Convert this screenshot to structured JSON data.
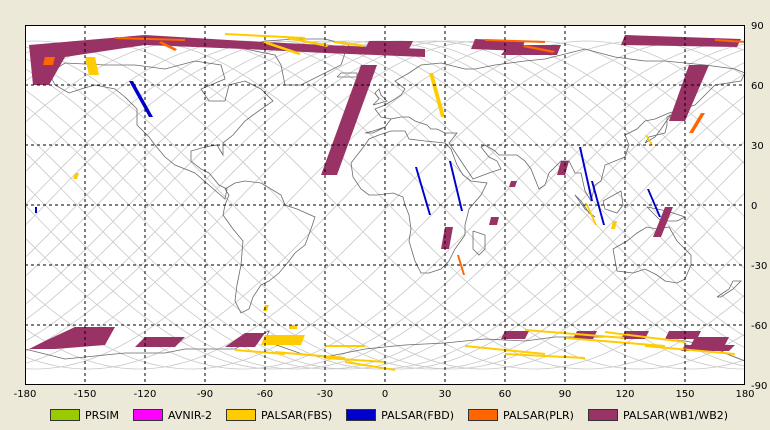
{
  "map": {
    "x_ticks": [
      "-180",
      "-150",
      "-120",
      "-90",
      "-60",
      "-30",
      "0",
      "30",
      "60",
      "90",
      "120",
      "150",
      "180"
    ],
    "y_ticks": [
      "90",
      "60",
      "30",
      "0",
      "-30",
      "-60",
      "-90"
    ],
    "colors": {
      "background": "#ffffff",
      "grid": "#000000",
      "coast": "#6a6a6a",
      "orbit": "#c8c8c8"
    }
  },
  "legend": {
    "items": [
      {
        "label": "PRSIM",
        "color": "#99cc00"
      },
      {
        "label": "AVNIR-2",
        "color": "#ff00ff"
      },
      {
        "label": "PALSAR(FBS)",
        "color": "#ffcc00"
      },
      {
        "label": "PALSAR(FBD)",
        "color": "#0000cc"
      },
      {
        "label": "PALSAR(PLR)",
        "color": "#ff6600"
      },
      {
        "label": "PALSAR(WB1/WB2)",
        "color": "#993366"
      }
    ]
  },
  "observations": [
    {
      "sensor": "PALSAR(WB1/WB2)",
      "coords": [
        [
          -178,
          80
        ],
        [
          -120,
          85
        ],
        [
          -70,
          82
        ],
        [
          -30,
          80
        ],
        [
          20,
          78
        ],
        [
          20,
          74
        ],
        [
          -30,
          76
        ],
        [
          -70,
          78
        ],
        [
          -120,
          80
        ],
        [
          -160,
          74
        ],
        [
          -168,
          60
        ],
        [
          -176,
          60
        ]
      ]
    },
    {
      "sensor": "PALSAR(WB1/WB2)",
      "coords": [
        [
          -12,
          70
        ],
        [
          -4,
          70
        ],
        [
          -24,
          15
        ],
        [
          -32,
          15
        ]
      ]
    },
    {
      "sensor": "PALSAR(WB1/WB2)",
      "coords": [
        [
          -8,
          82
        ],
        [
          14,
          82
        ],
        [
          12,
          78
        ],
        [
          -10,
          78
        ]
      ]
    },
    {
      "sensor": "PALSAR(WB1/WB2)",
      "coords": [
        [
          62,
          80
        ],
        [
          88,
          80
        ],
        [
          86,
          75
        ],
        [
          58,
          75
        ]
      ]
    },
    {
      "sensor": "PALSAR(WB1/WB2)",
      "coords": [
        [
          45,
          83
        ],
        [
          70,
          82
        ],
        [
          68,
          77
        ],
        [
          43,
          78
        ]
      ]
    },
    {
      "sensor": "PALSAR(WB1/WB2)",
      "coords": [
        [
          120,
          85
        ],
        [
          178,
          83
        ],
        [
          176,
          79
        ],
        [
          118,
          80
        ]
      ]
    },
    {
      "sensor": "PALSAR(WB1/WB2)",
      "coords": [
        [
          152,
          70
        ],
        [
          162,
          70
        ],
        [
          150,
          42
        ],
        [
          142,
          42
        ]
      ]
    },
    {
      "sensor": "PALSAR(WB1/WB2)",
      "coords": [
        [
          88,
          22
        ],
        [
          92,
          22
        ],
        [
          90,
          15
        ],
        [
          86,
          15
        ]
      ]
    },
    {
      "sensor": "PALSAR(WB1/WB2)",
      "coords": [
        [
          140,
          -1
        ],
        [
          144,
          -1
        ],
        [
          138,
          -16
        ],
        [
          134,
          -16
        ]
      ]
    },
    {
      "sensor": "PALSAR(WB1/WB2)",
      "coords": [
        [
          30,
          -11
        ],
        [
          34,
          -11
        ],
        [
          32,
          -22
        ],
        [
          28,
          -22
        ]
      ]
    },
    {
      "sensor": "PALSAR(WB1/WB2)",
      "coords": [
        [
          53,
          -6
        ],
        [
          57,
          -6
        ],
        [
          56,
          -10
        ],
        [
          52,
          -10
        ]
      ]
    },
    {
      "sensor": "PALSAR(WB1/WB2)",
      "coords": [
        [
          63,
          12
        ],
        [
          66,
          12
        ],
        [
          65,
          9
        ],
        [
          62,
          9
        ]
      ]
    },
    {
      "sensor": "PALSAR(WB1/WB2)",
      "coords": [
        [
          -155,
          -61
        ],
        [
          -135,
          -61
        ],
        [
          -140,
          -70
        ],
        [
          -165,
          -72
        ],
        [
          -178,
          -72
        ],
        [
          -170,
          -68
        ]
      ]
    },
    {
      "sensor": "PALSAR(WB1/WB2)",
      "coords": [
        [
          -120,
          -66
        ],
        [
          -100,
          -66
        ],
        [
          -105,
          -71
        ],
        [
          -125,
          -71
        ]
      ]
    },
    {
      "sensor": "PALSAR(WB1/WB2)",
      "coords": [
        [
          -70,
          -64
        ],
        [
          -60,
          -64
        ],
        [
          -65,
          -71
        ],
        [
          -80,
          -71
        ]
      ]
    },
    {
      "sensor": "PALSAR(WB1/WB2)",
      "coords": [
        [
          60,
          -63
        ],
        [
          72,
          -63
        ],
        [
          70,
          -67
        ],
        [
          58,
          -67
        ]
      ]
    },
    {
      "sensor": "PALSAR(WB1/WB2)",
      "coords": [
        [
          96,
          -63
        ],
        [
          106,
          -63
        ],
        [
          104,
          -67
        ],
        [
          94,
          -67
        ]
      ]
    },
    {
      "sensor": "PALSAR(WB1/WB2)",
      "coords": [
        [
          120,
          -63
        ],
        [
          132,
          -63
        ],
        [
          130,
          -67
        ],
        [
          118,
          -67
        ]
      ]
    },
    {
      "sensor": "PALSAR(WB1/WB2)",
      "coords": [
        [
          142,
          -63
        ],
        [
          158,
          -63
        ],
        [
          156,
          -67
        ],
        [
          140,
          -67
        ]
      ]
    },
    {
      "sensor": "PALSAR(WB1/WB2)",
      "coords": [
        [
          155,
          -66
        ],
        [
          172,
          -66
        ],
        [
          170,
          -70
        ],
        [
          153,
          -70
        ]
      ]
    },
    {
      "sensor": "PALSAR(WB1/WB2)",
      "coords": [
        [
          150,
          -70
        ],
        [
          175,
          -70
        ],
        [
          172,
          -73
        ],
        [
          148,
          -73
        ]
      ]
    },
    {
      "sensor": "PALSAR(FBS)",
      "coords": [
        [
          -80,
          86
        ],
        [
          -40,
          84
        ],
        [
          -40,
          83
        ],
        [
          -80,
          85
        ]
      ]
    },
    {
      "sensor": "PALSAR(FBS)",
      "coords": [
        [
          -48,
          84
        ],
        [
          -28,
          80
        ],
        [
          -29,
          79
        ],
        [
          -49,
          83
        ]
      ]
    },
    {
      "sensor": "PALSAR(FBS)",
      "coords": [
        [
          -60,
          82
        ],
        [
          -42,
          76
        ],
        [
          -43,
          75
        ],
        [
          -61,
          81
        ]
      ]
    },
    {
      "sensor": "PALSAR(FBS)",
      "coords": [
        [
          -25,
          82
        ],
        [
          -10,
          80
        ],
        [
          -11,
          79
        ],
        [
          -26,
          81
        ]
      ]
    },
    {
      "sensor": "PALSAR(FBS)",
      "coords": [
        [
          -150,
          74
        ],
        [
          -145,
          74
        ],
        [
          -143,
          65
        ],
        [
          -148,
          65
        ]
      ]
    },
    {
      "sensor": "PALSAR(FBS)",
      "coords": [
        [
          22,
          66
        ],
        [
          24,
          66
        ],
        [
          30,
          44
        ],
        [
          28,
          44
        ]
      ]
    },
    {
      "sensor": "PALSAR(FBS)",
      "coords": [
        [
          -155,
          16
        ],
        [
          -153,
          16
        ],
        [
          -154,
          13
        ],
        [
          -156,
          13
        ]
      ]
    },
    {
      "sensor": "PALSAR(FBS)",
      "coords": [
        [
          -60,
          -65
        ],
        [
          -40,
          -65
        ],
        [
          -42,
          -70
        ],
        [
          -62,
          -70
        ]
      ]
    },
    {
      "sensor": "PALSAR(FBS)",
      "coords": [
        [
          -60,
          -50
        ],
        [
          -58,
          -50
        ],
        [
          -59,
          -53
        ],
        [
          -61,
          -53
        ]
      ]
    },
    {
      "sensor": "PALSAR(FBS)",
      "coords": [
        [
          -48,
          -60
        ],
        [
          -44,
          -60
        ],
        [
          -44,
          -62
        ],
        [
          -48,
          -62
        ]
      ]
    },
    {
      "sensor": "PALSAR(FBS)",
      "coords": [
        [
          -30,
          -70
        ],
        [
          -10,
          -70
        ],
        [
          -10,
          -71
        ],
        [
          -30,
          -71
        ]
      ]
    },
    {
      "sensor": "PALSAR(FBS)",
      "coords": [
        [
          -75,
          -72
        ],
        [
          -50,
          -74
        ],
        [
          -50,
          -75
        ],
        [
          -75,
          -73
        ]
      ]
    },
    {
      "sensor": "PALSAR(FBS)",
      "coords": [
        [
          -55,
          -73
        ],
        [
          -20,
          -76
        ],
        [
          -20,
          -77
        ],
        [
          -55,
          -74
        ]
      ]
    },
    {
      "sensor": "PALSAR(FBS)",
      "coords": [
        [
          -30,
          -76
        ],
        [
          0,
          -78
        ],
        [
          0,
          -79
        ],
        [
          -30,
          -77
        ]
      ]
    },
    {
      "sensor": "PALSAR(FBS)",
      "coords": [
        [
          -20,
          -78
        ],
        [
          5,
          -82
        ],
        [
          5,
          -83
        ],
        [
          -20,
          -79
        ]
      ]
    },
    {
      "sensor": "PALSAR(FBS)",
      "coords": [
        [
          40,
          -70
        ],
        [
          80,
          -74
        ],
        [
          80,
          -75
        ],
        [
          40,
          -71
        ]
      ]
    },
    {
      "sensor": "PALSAR(FBS)",
      "coords": [
        [
          60,
          -74
        ],
        [
          100,
          -76
        ],
        [
          100,
          -77
        ],
        [
          60,
          -75
        ]
      ]
    },
    {
      "sensor": "PALSAR(FBS)",
      "coords": [
        [
          70,
          -62
        ],
        [
          120,
          -66
        ],
        [
          120,
          -67
        ],
        [
          70,
          -63
        ]
      ]
    },
    {
      "sensor": "PALSAR(FBS)",
      "coords": [
        [
          90,
          -66
        ],
        [
          140,
          -70
        ],
        [
          140,
          -71
        ],
        [
          90,
          -67
        ]
      ]
    },
    {
      "sensor": "PALSAR(FBS)",
      "coords": [
        [
          110,
          -63
        ],
        [
          150,
          -68
        ],
        [
          150,
          -69
        ],
        [
          110,
          -64
        ]
      ]
    },
    {
      "sensor": "PALSAR(FBS)",
      "coords": [
        [
          130,
          -70
        ],
        [
          175,
          -74
        ],
        [
          175,
          -75
        ],
        [
          130,
          -71
        ]
      ]
    },
    {
      "sensor": "PALSAR(FBS)",
      "coords": [
        [
          100,
          1
        ],
        [
          101,
          1
        ],
        [
          106,
          -10
        ],
        [
          105,
          -10
        ]
      ]
    },
    {
      "sensor": "PALSAR(FBS)",
      "coords": [
        [
          130,
          35
        ],
        [
          131,
          35
        ],
        [
          134,
          30
        ],
        [
          133,
          30
        ]
      ]
    },
    {
      "sensor": "PALSAR(FBS)",
      "coords": [
        [
          114,
          -8
        ],
        [
          116,
          -8
        ],
        [
          115,
          -12
        ],
        [
          113,
          -12
        ]
      ]
    },
    {
      "sensor": "PALSAR(FBD)",
      "coords": [
        [
          -128,
          62
        ],
        [
          -126,
          62
        ],
        [
          -116,
          44
        ],
        [
          -118,
          44
        ]
      ]
    },
    {
      "sensor": "PALSAR(FBD)",
      "coords": [
        [
          15,
          19
        ],
        [
          16,
          19
        ],
        [
          23,
          -5
        ],
        [
          22,
          -5
        ]
      ]
    },
    {
      "sensor": "PALSAR(FBD)",
      "coords": [
        [
          32,
          22
        ],
        [
          33,
          22
        ],
        [
          39,
          -3
        ],
        [
          38,
          -3
        ]
      ]
    },
    {
      "sensor": "PALSAR(FBD)",
      "coords": [
        [
          97,
          29
        ],
        [
          98,
          29
        ],
        [
          104,
          2
        ],
        [
          103,
          2
        ]
      ]
    },
    {
      "sensor": "PALSAR(FBD)",
      "coords": [
        [
          103,
          12
        ],
        [
          104,
          12
        ],
        [
          110,
          -10
        ],
        [
          109,
          -10
        ]
      ]
    },
    {
      "sensor": "PALSAR(FBD)",
      "coords": [
        [
          131,
          8
        ],
        [
          132,
          8
        ],
        [
          138,
          -6
        ],
        [
          137,
          -6
        ]
      ]
    },
    {
      "sensor": "PALSAR(FBD)",
      "coords": [
        [
          -175,
          -1
        ],
        [
          -174,
          -1
        ],
        [
          -174,
          -4
        ],
        [
          -175,
          -4
        ]
      ]
    },
    {
      "sensor": "PALSAR(PLR)",
      "coords": [
        [
          -135,
          84
        ],
        [
          -100,
          83
        ],
        [
          -100,
          82
        ],
        [
          -135,
          83
        ]
      ]
    },
    {
      "sensor": "PALSAR(PLR)",
      "coords": [
        [
          -112,
          82
        ],
        [
          -104,
          78
        ],
        [
          -105,
          77
        ],
        [
          -113,
          81
        ]
      ]
    },
    {
      "sensor": "PALSAR(PLR)",
      "coords": [
        [
          -170,
          74
        ],
        [
          -165,
          74
        ],
        [
          -166,
          70
        ],
        [
          -171,
          70
        ]
      ]
    },
    {
      "sensor": "PALSAR(PLR)",
      "coords": [
        [
          50,
          83
        ],
        [
          80,
          82
        ],
        [
          80,
          81
        ],
        [
          50,
          82
        ]
      ]
    },
    {
      "sensor": "PALSAR(PLR)",
      "coords": [
        [
          70,
          80
        ],
        [
          85,
          77
        ],
        [
          84,
          76
        ],
        [
          69,
          79
        ]
      ]
    },
    {
      "sensor": "PALSAR(PLR)",
      "coords": [
        [
          165,
          83
        ],
        [
          180,
          82
        ],
        [
          180,
          81
        ],
        [
          165,
          82
        ]
      ]
    },
    {
      "sensor": "PALSAR(PLR)",
      "coords": [
        [
          158,
          46
        ],
        [
          160,
          46
        ],
        [
          154,
          36
        ],
        [
          152,
          36
        ]
      ]
    },
    {
      "sensor": "PALSAR(PLR)",
      "coords": [
        [
          36,
          -25
        ],
        [
          37,
          -25
        ],
        [
          40,
          -35
        ],
        [
          39,
          -35
        ]
      ]
    }
  ]
}
